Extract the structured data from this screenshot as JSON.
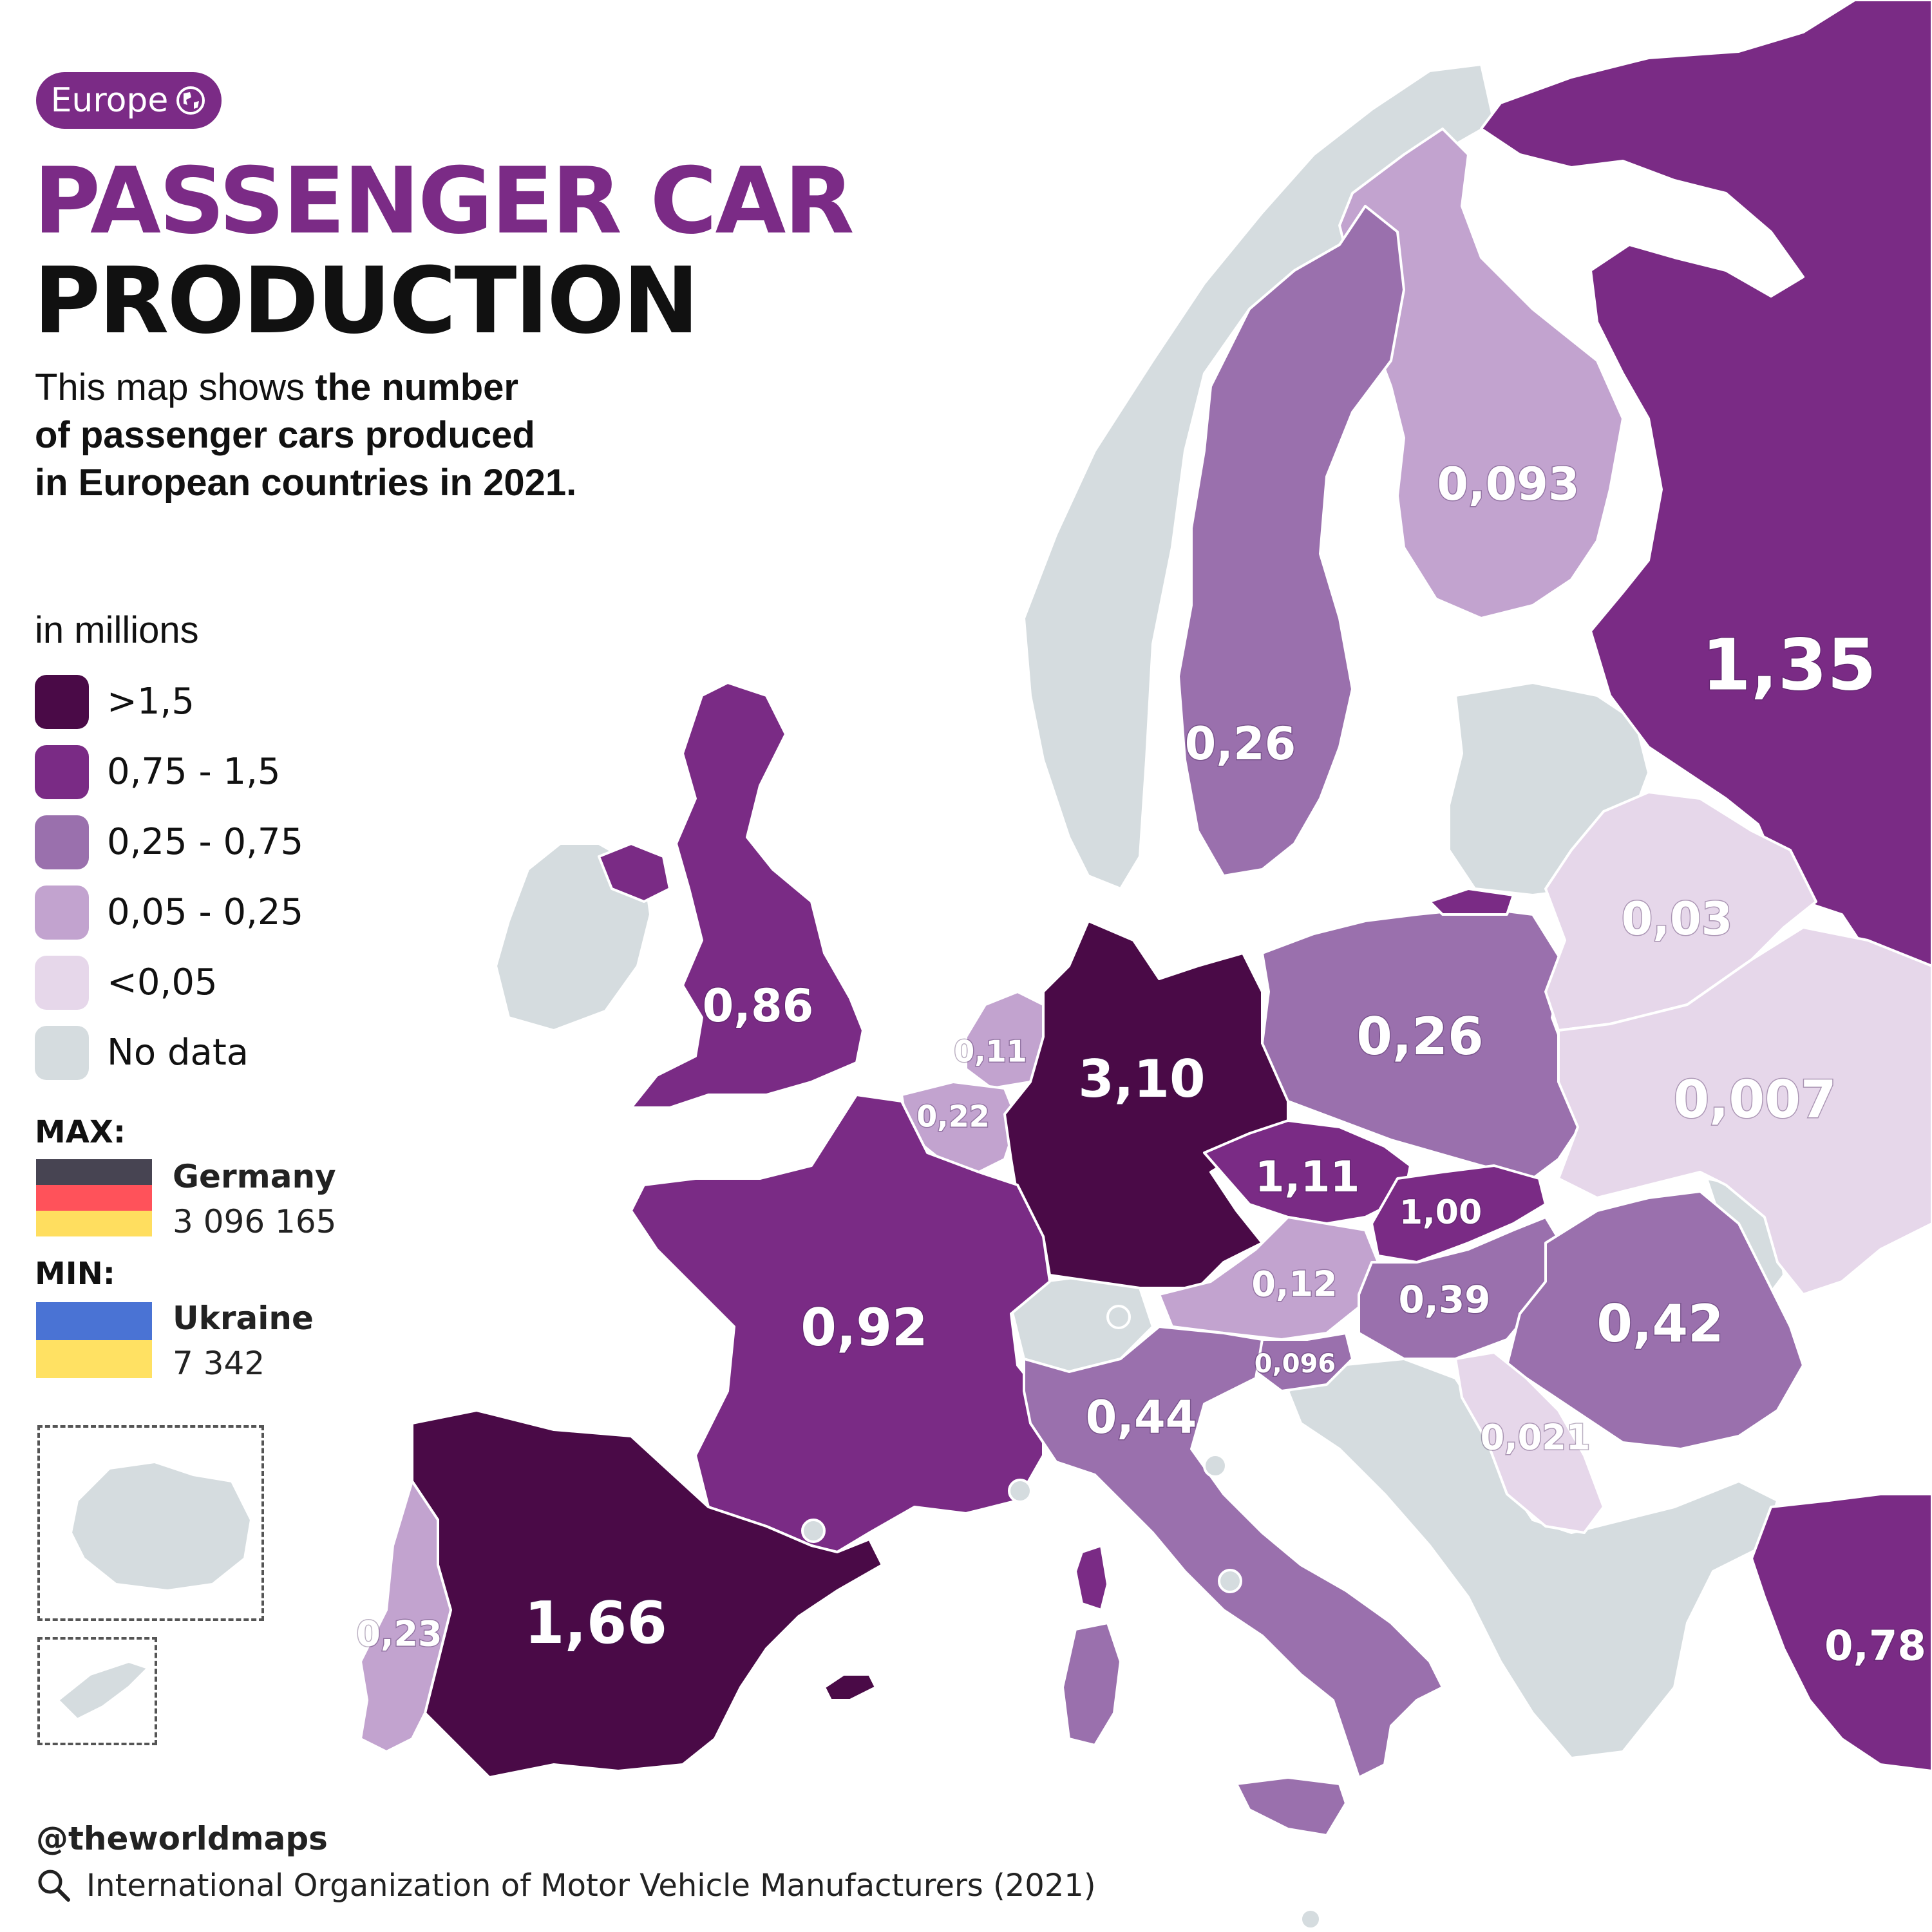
{
  "badge": {
    "label": "Europe",
    "icon": "globe-icon"
  },
  "title": {
    "line1": "PASSENGER CAR",
    "line2": "PRODUCTION"
  },
  "description": {
    "prefix": "This map shows ",
    "bold1": "the number",
    "bold2": "of passenger cars produced",
    "bold3": "in European countries in 2021."
  },
  "legend": {
    "units": "in millions",
    "items": [
      {
        "label": ">1,5",
        "color": "#4a0a47"
      },
      {
        "label": "0,75 - 1,5",
        "color": "#7a2b85"
      },
      {
        "label": "0,25 - 0,75",
        "color": "#9a70ad"
      },
      {
        "label": "0,05 - 0,25",
        "color": "#c2a3cf"
      },
      {
        "label": "<0,05",
        "color": "#e6d7ea"
      },
      {
        "label": "No data",
        "color": "#d5dcdf"
      }
    ]
  },
  "extremes": {
    "max": {
      "heading": "MAX:",
      "country": "Germany",
      "value": "3 096 165",
      "flag_colors": [
        "#474452",
        "#ff525a",
        "#ffde5f"
      ]
    },
    "min": {
      "heading": "MIN:",
      "country": "Ukraine",
      "value": "7 342",
      "flag_colors": [
        "#4a73d4",
        "#ffe163"
      ]
    }
  },
  "map_values": {
    "russia": "1,35",
    "finland": "0,093",
    "sweden": "0,26",
    "uk": "0,86",
    "netherlands": "0,11",
    "belgium": "0,22",
    "germany": "3,10",
    "poland": "0,26",
    "belarus": "0,03",
    "ukraine": "0,007",
    "czechia": "1,11",
    "slovakia": "1,00",
    "austria": "0,12",
    "hungary": "0,39",
    "romania": "0,42",
    "slovenia": "0,096",
    "serbia": "0,021",
    "france": "0,92",
    "italy": "0,44",
    "spain": "1,66",
    "portugal": "0,23",
    "turkey": "0,78"
  },
  "footer": {
    "handle": "@theworldmaps",
    "source": "International Organization of Motor Vehicle Manufacturers (2021)"
  }
}
